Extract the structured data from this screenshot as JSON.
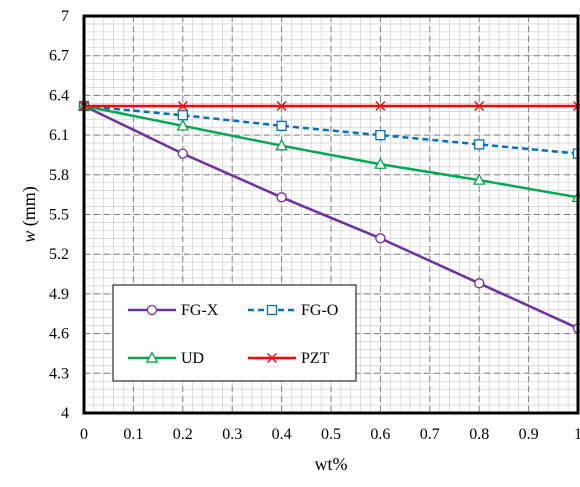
{
  "chart_data": {
    "type": "line",
    "xlabel": "wt%",
    "ylabel_var": "w",
    "ylabel_unit": " (mm)",
    "xlim": [
      0,
      1
    ],
    "ylim": [
      4,
      7
    ],
    "x_ticks": [
      0,
      0.1,
      0.2,
      0.3,
      0.4,
      0.5,
      0.6,
      0.7,
      0.8,
      0.9,
      1
    ],
    "y_ticks": [
      4,
      4.3,
      4.6,
      4.9,
      5.2,
      5.5,
      5.8,
      6.1,
      6.4,
      6.7,
      7
    ],
    "x_tick_labels": [
      "0",
      "0.1",
      "0.2",
      "0.3",
      "0.4",
      "0.5",
      "0.6",
      "0.7",
      "0.8",
      "0.9",
      "1"
    ],
    "y_tick_labels": [
      "4",
      "4.3",
      "4.6",
      "4.9",
      "5.2",
      "5.5",
      "5.8",
      "6.1",
      "6.4",
      "6.7",
      "7"
    ],
    "grid": true,
    "legend_position": "bottom-left",
    "x": [
      0,
      0.2,
      0.4,
      0.6,
      0.8,
      1
    ],
    "series": [
      {
        "name": "FG-X",
        "values": [
          6.32,
          5.96,
          5.63,
          5.32,
          4.98,
          4.64
        ],
        "color": "#7030a0",
        "marker": "circle",
        "dash": "solid"
      },
      {
        "name": "FG-O",
        "values": [
          6.32,
          6.25,
          6.17,
          6.1,
          6.03,
          5.96
        ],
        "color": "#0070c0",
        "marker": "square",
        "dash": "dashed"
      },
      {
        "name": "UD",
        "values": [
          6.32,
          6.17,
          6.02,
          5.88,
          5.76,
          5.63
        ],
        "color": "#00a84f",
        "marker": "triangle",
        "dash": "solid"
      },
      {
        "name": "PZT",
        "values": [
          6.32,
          6.32,
          6.32,
          6.32,
          6.32,
          6.32
        ],
        "color": "#ff0000",
        "marker": "x",
        "dash": "solid"
      }
    ]
  }
}
